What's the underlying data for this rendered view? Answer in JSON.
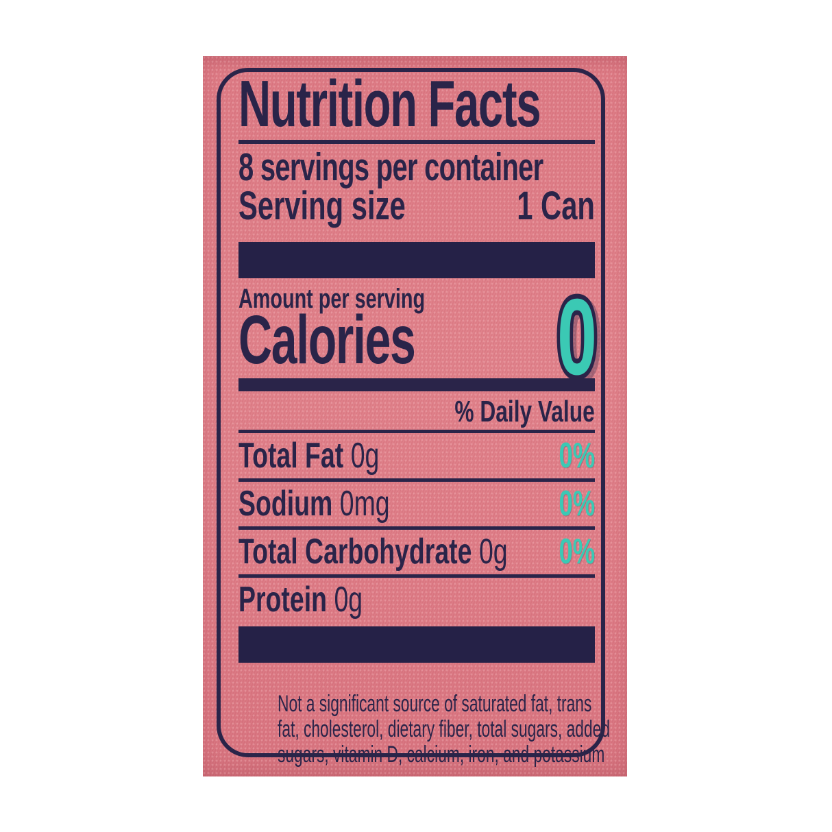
{
  "nutrition_label": {
    "title": "Nutrition Facts",
    "servings_per_container": "8 servings per container",
    "serving_size": {
      "label": "Serving size",
      "value": "1 Can"
    },
    "amount_per_serving": "Amount per serving",
    "calories": {
      "label": "Calories",
      "value": "0"
    },
    "daily_value_header": "% Daily Value",
    "nutrients": [
      {
        "name": "Total Fat",
        "amount": "0g",
        "daily_value": "0%"
      },
      {
        "name": "Sodium",
        "amount": "0mg",
        "daily_value": "0%"
      },
      {
        "name": "Total Carbohydrate",
        "amount": "0g",
        "daily_value": "0%"
      },
      {
        "name": "Protein",
        "amount": "0g",
        "daily_value": ""
      }
    ],
    "footnote": "Not a significant source of saturated fat, trans\nfat, cholesterol, dietary fiber, total sugars, added\nsugars, vitamin D, calcium, iron, and potassium"
  },
  "colors": {
    "page_background": "#ffffff",
    "label_pink": "#dd7b84",
    "ink_navy": "#2a2449",
    "accent_teal": "#3bc9b4"
  }
}
